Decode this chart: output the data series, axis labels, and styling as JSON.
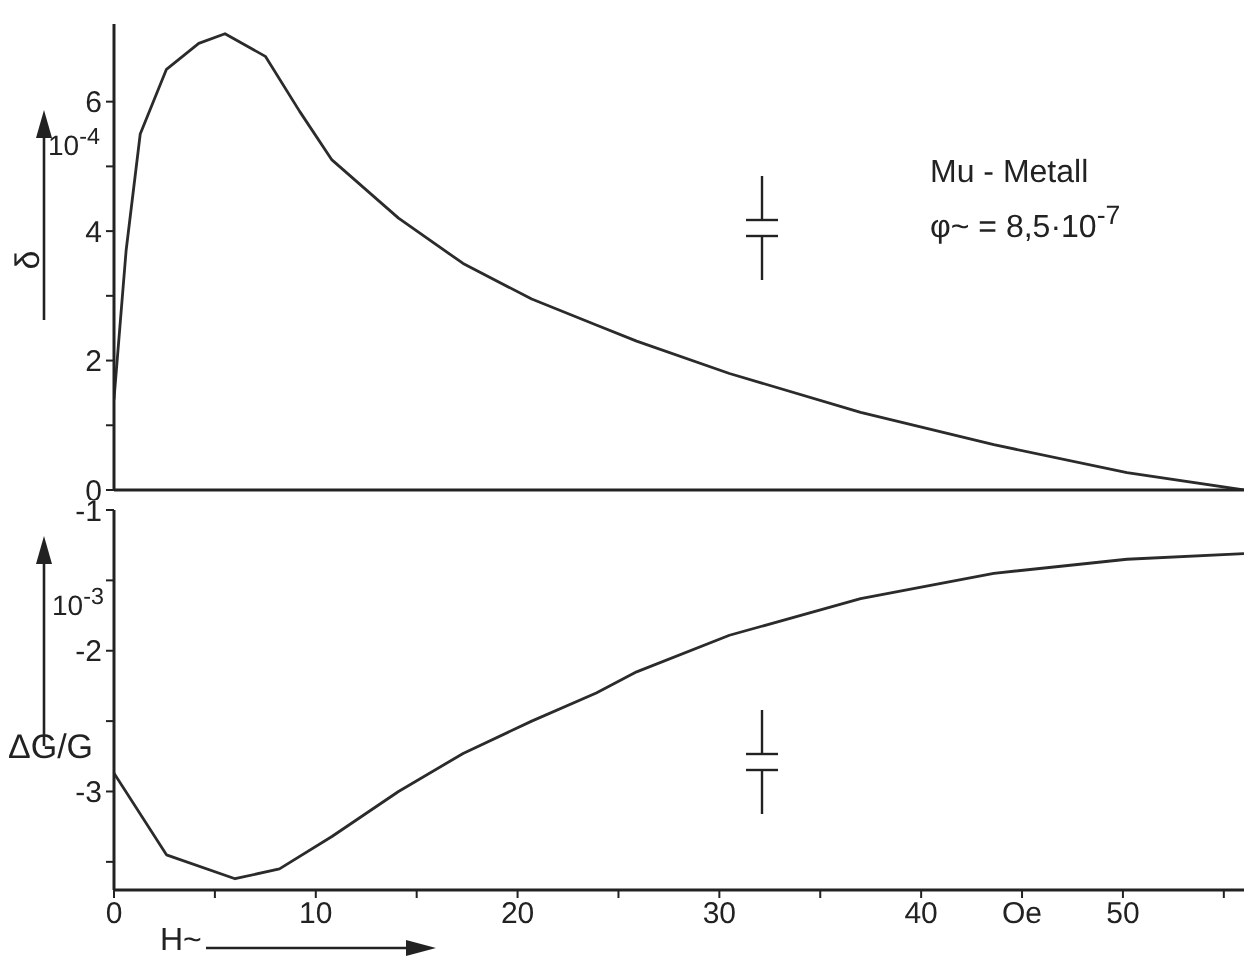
{
  "chart_data": [
    {
      "type": "line",
      "ylabel": "δ",
      "annotations": [
        "10$^{-4}$",
        "Mu - Metall",
        "φ~ = 8,5·10$^{-7}$"
      ],
      "tick_labels": "y",
      "x": [
        0,
        0.6,
        1.3,
        2.6,
        4.2,
        5.5,
        7.5,
        9.2,
        10.8,
        14.1,
        17.3,
        20.7,
        23.9,
        25.9,
        30.5,
        37,
        43.6,
        50.2,
        56
      ],
      "series": [
        {
          "color": "#2b2b2b",
          "values": [
            1.4,
            3.7,
            5.5,
            6.5,
            6.9,
            7.05,
            6.7,
            5.85,
            5.1,
            4.2,
            3.5,
            2.95,
            2.55,
            2.3,
            1.8,
            1.2,
            0.7,
            0.27,
            0
          ]
        }
      ],
      "xlim": [
        0,
        56
      ],
      "ylim": [
        0,
        7.2
      ],
      "yticks": [
        0,
        {
          "value": 1,
          "label": null
        },
        2,
        {
          "value": 3,
          "label": null
        },
        4,
        {
          "value": 5,
          "label": null
        },
        6
      ]
    },
    {
      "type": "line",
      "xlabel": "H~",
      "ylabel": "ΔG/G",
      "annotations": [
        "10$^{-3}$"
      ],
      "x": [
        0,
        2.6,
        6.0,
        8.2,
        10.8,
        14.1,
        17.3,
        20.7,
        23.9,
        25.9,
        30.5,
        37,
        43.6,
        50.2,
        56
      ],
      "series": [
        {
          "color": "#2b2b2b",
          "values": [
            -2.87,
            -3.45,
            -3.62,
            -3.55,
            -3.32,
            -3.0,
            -2.73,
            -2.5,
            -2.3,
            -2.15,
            -1.89,
            -1.63,
            -1.45,
            -1.35,
            -1.31
          ]
        }
      ],
      "xlim": [
        0,
        56
      ],
      "ylim": [
        -3.7,
        -1
      ],
      "xticks": [
        0,
        {
          "value": 5,
          "label": null
        },
        10,
        {
          "value": 15,
          "label": null
        },
        20,
        {
          "value": 25,
          "label": null
        },
        30,
        {
          "value": 35,
          "label": null
        },
        40,
        {
          "value": 45,
          "label": "Oe"
        },
        50,
        {
          "value": 55,
          "label": null
        }
      ],
      "yticks": [
        -1,
        {
          "value": -1.5,
          "label": null
        },
        -2,
        {
          "value": -2.5,
          "label": null
        },
        -3,
        {
          "value": -3.5,
          "label": null
        }
      ]
    }
  ]
}
